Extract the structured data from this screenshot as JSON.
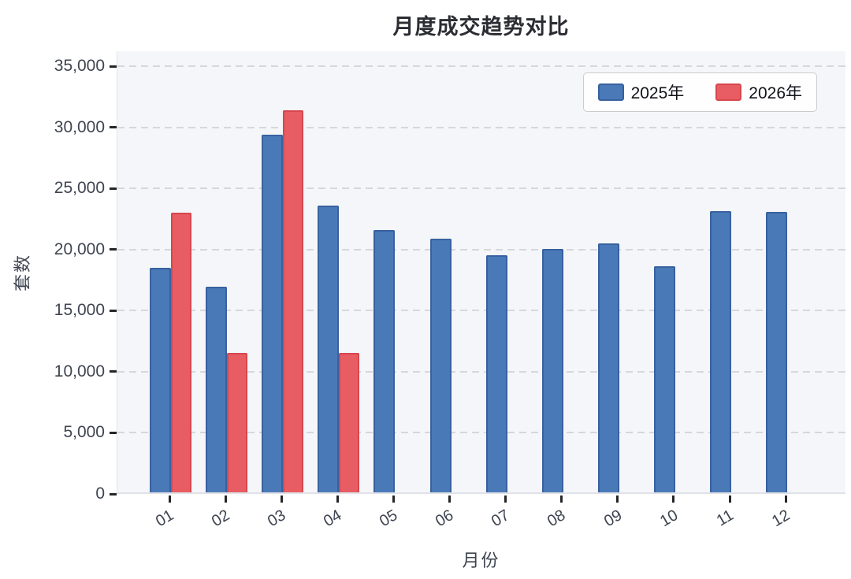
{
  "chart_data": {
    "type": "bar",
    "title": "月度成交趋势对比",
    "xlabel": "月份",
    "ylabel": "套数",
    "categories": [
      "01",
      "02",
      "03",
      "04",
      "05",
      "06",
      "07",
      "08",
      "09",
      "10",
      "11",
      "12"
    ],
    "series": [
      {
        "name": "2025年",
        "color": "#4a79b8",
        "edge_color": "#38619f",
        "values": [
          18400,
          16850,
          29300,
          23500,
          21450,
          20800,
          19400,
          19900,
          20400,
          18500,
          23000,
          22950
        ]
      },
      {
        "name": "2026年",
        "color": "#e85d63",
        "edge_color": "#d6474e",
        "values": [
          22900,
          11400,
          31300,
          11400,
          null,
          null,
          null,
          null,
          null,
          null,
          null,
          null
        ]
      }
    ],
    "yticks": [
      0,
      5000,
      10000,
      15000,
      20000,
      25000,
      30000,
      35000
    ],
    "ylim": [
      0,
      36250
    ],
    "grid": true,
    "grid_style": "dashed",
    "legend_position": "top-right",
    "plot_background": "#f4f6f9",
    "tick_label_color": "#3e4450"
  }
}
